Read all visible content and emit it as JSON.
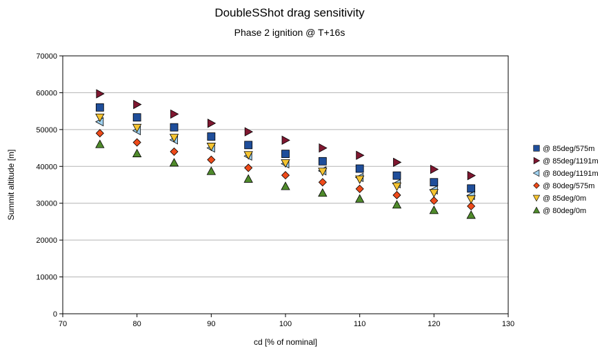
{
  "chart_data": {
    "type": "scatter",
    "title": "DoubleSShot drag sensitivity",
    "subtitle": "Phase 2 ignition @ T+16s",
    "xlabel": "cd [% of nominal]",
    "ylabel": "Summit altitude [m]",
    "xlim": [
      70,
      130
    ],
    "ylim": [
      0,
      70000
    ],
    "xticks": [
      70,
      80,
      90,
      100,
      110,
      120,
      130
    ],
    "yticks": [
      0,
      10000,
      20000,
      30000,
      40000,
      50000,
      60000,
      70000
    ],
    "grid": "horizontal",
    "legend_position": "right",
    "x": [
      75,
      80,
      85,
      90,
      95,
      100,
      105,
      110,
      115,
      120,
      125
    ],
    "series": [
      {
        "name": "@ 85deg/575m",
        "marker": "square",
        "color": "#1f4e9a",
        "values": [
          56000,
          53300,
          50600,
          48100,
          45800,
          43400,
          41400,
          39400,
          37500,
          35700,
          34000
        ]
      },
      {
        "name": "@ 85deg/1191m",
        "marker": "triangle-right",
        "color": "#7f1730",
        "values": [
          59700,
          56800,
          54200,
          51700,
          49400,
          47100,
          45000,
          43000,
          41100,
          39200,
          37500
        ]
      },
      {
        "name": "@ 80deg/1191m",
        "marker": "triangle-left",
        "color": "#9fd0ee",
        "values": [
          52100,
          49700,
          47200,
          45000,
          42800,
          40700,
          38800,
          37000,
          35300,
          33600,
          32100
        ]
      },
      {
        "name": "@ 80deg/575m",
        "marker": "diamond",
        "color": "#ee4a1a",
        "values": [
          49000,
          46500,
          44000,
          41800,
          39600,
          37600,
          35700,
          33900,
          32200,
          30700,
          29200
        ]
      },
      {
        "name": "@ 85deg/0m",
        "marker": "triangle-down",
        "color": "#f5c431",
        "values": [
          53300,
          50500,
          47800,
          45400,
          43100,
          40900,
          38600,
          36500,
          34600,
          32800,
          31100
        ]
      },
      {
        "name": "@ 80deg/0m",
        "marker": "triangle-up",
        "color": "#4f8a2b",
        "values": [
          46000,
          43500,
          41000,
          38700,
          36600,
          34600,
          32800,
          31200,
          29600,
          28100,
          26800
        ]
      }
    ]
  }
}
